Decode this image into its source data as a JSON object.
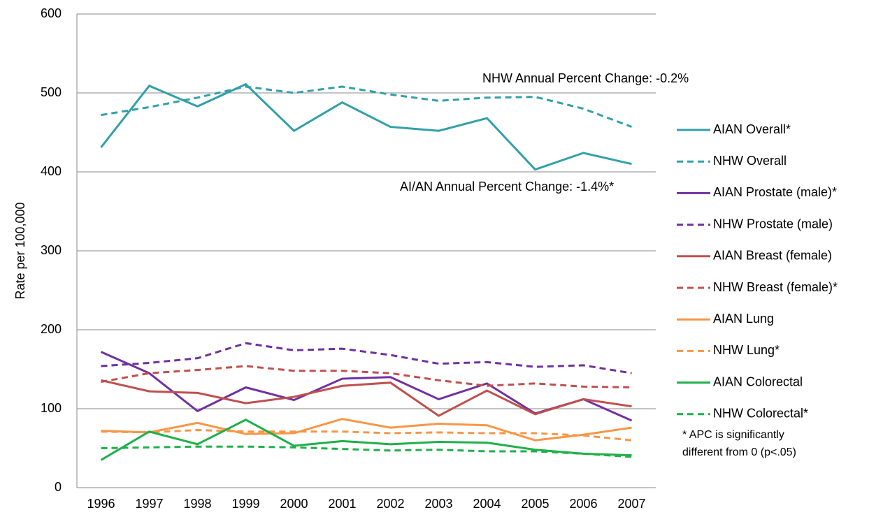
{
  "chart_data": {
    "type": "line",
    "y_label": "Rate per 100,000",
    "categories": [
      "1996",
      "1997",
      "1998",
      "1999",
      "2000",
      "2001",
      "2002",
      "2003",
      "2004",
      "2005",
      "2006",
      "2007"
    ],
    "ylim": [
      0,
      600
    ],
    "yticks": [
      0,
      100,
      200,
      300,
      400,
      500,
      600
    ],
    "grid": true,
    "series": [
      {
        "name": "AIAN Overall*",
        "color": "#31a0a8",
        "dash": false,
        "values": [
          431,
          509,
          483,
          511,
          452,
          488,
          457,
          452,
          468,
          403,
          424,
          410
        ]
      },
      {
        "name": "NHW Overall",
        "color": "#31a0a8",
        "dash": true,
        "values": [
          472,
          482,
          494,
          508,
          500,
          508,
          498,
          490,
          494,
          495,
          480,
          457
        ]
      },
      {
        "name": "AIAN Prostate (male)*",
        "color": "#7030a0",
        "dash": false,
        "values": [
          172,
          145,
          97,
          127,
          111,
          138,
          140,
          112,
          132,
          94,
          112,
          85
        ]
      },
      {
        "name": "NHW Prostate (male)",
        "color": "#7030a0",
        "dash": true,
        "values": [
          154,
          158,
          164,
          183,
          174,
          176,
          168,
          157,
          159,
          153,
          155,
          145
        ]
      },
      {
        "name": "AIAN Breast (female)",
        "color": "#c0504d",
        "dash": false,
        "values": [
          136,
          122,
          120,
          107,
          115,
          129,
          133,
          91,
          123,
          93,
          112,
          103
        ]
      },
      {
        "name": "NHW Breast (female)*",
        "color": "#c0504d",
        "dash": true,
        "values": [
          134,
          145,
          149,
          154,
          148,
          148,
          145,
          136,
          129,
          132,
          128,
          127
        ]
      },
      {
        "name": "AIAN Lung",
        "color": "#f79646",
        "dash": false,
        "values": [
          72,
          70,
          82,
          68,
          69,
          87,
          76,
          81,
          79,
          60,
          67,
          76
        ]
      },
      {
        "name": "NHW Lung*",
        "color": "#f79646",
        "dash": true,
        "values": [
          71,
          70,
          73,
          71,
          71,
          71,
          69,
          70,
          69,
          69,
          66,
          60
        ]
      },
      {
        "name": "AIAN Colorectal",
        "color": "#1eb04a",
        "dash": false,
        "values": [
          35,
          71,
          55,
          86,
          53,
          59,
          55,
          58,
          57,
          48,
          43,
          41
        ]
      },
      {
        "name": "NHW Colorectal*",
        "color": "#1eb04a",
        "dash": true,
        "values": [
          50,
          51,
          52,
          52,
          51,
          49,
          47,
          48,
          46,
          46,
          43,
          39
        ]
      }
    ],
    "annotations": [
      "NHW Annual Percent Change:  -0.2%",
      "AI/AN Annual Percent Change:  -1.4%*"
    ],
    "footnote": [
      "* APC is significantly",
      "different from 0 (p<.05)"
    ]
  }
}
